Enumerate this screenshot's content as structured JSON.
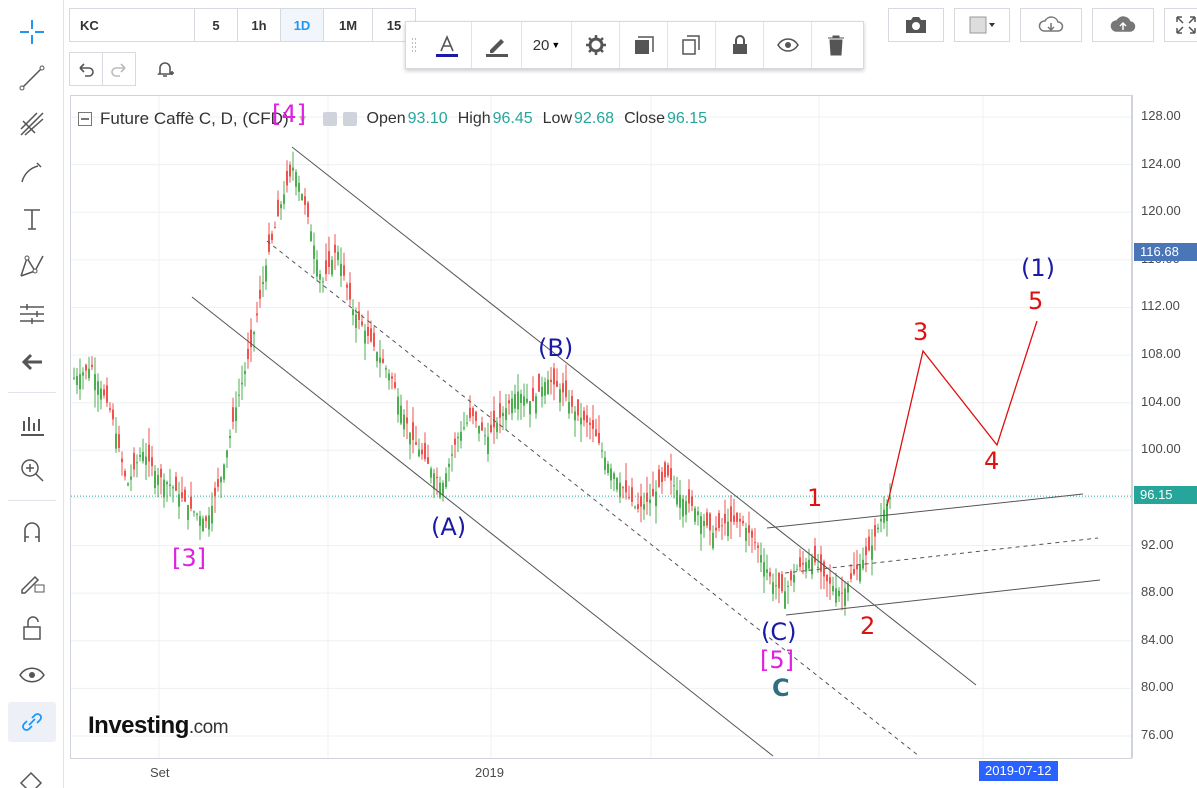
{
  "header": {
    "symbol": "KC",
    "intervals": [
      "5",
      "1h",
      "1D",
      "1M",
      "15"
    ],
    "active_interval": "1D"
  },
  "draw_toolbar": {
    "font_size": "20"
  },
  "legend": {
    "title": "Future Caffè C, D, (CFD)",
    "open_label": "Open",
    "open_value": "93.10",
    "high_label": "High",
    "high_value": "96.45",
    "low_label": "Low",
    "low_value": "92.68",
    "close_label": "Close",
    "close_value": "96.15"
  },
  "price_axis": {
    "ticks": [
      "128.00",
      "124.00",
      "120.00",
      "116.00",
      "112.00",
      "108.00",
      "104.00",
      "100.00",
      "96.00",
      "92.00",
      "88.00",
      "84.00",
      "80.00",
      "76.00"
    ],
    "badge_blue": "116.68",
    "badge_green": "96.15"
  },
  "time_axis": {
    "labels": [
      "Set",
      "2019"
    ],
    "cursor_date": "2019-07-12"
  },
  "wave_labels": {
    "w4_mag": "[4]",
    "w3_mag": "[3]",
    "w5_mag": "[5]",
    "wA": "(A)",
    "wB": "(B)",
    "wC": "(C)",
    "wC_big": "C",
    "r1": "1",
    "r2": "2",
    "r3": "3",
    "r4": "4",
    "r5": "5",
    "deg1": "(1)"
  },
  "logo": {
    "main": "Investing",
    "suffix": ".com"
  },
  "colors": {
    "up": "#4caf50",
    "down": "#ef5350",
    "accent": "#2196f3",
    "price_line": "#26a69a",
    "wave_blue": "#1a1aa6",
    "wave_magenta": "#e020e0",
    "wave_red": "#e01010"
  },
  "icons": {
    "left_toolbar": [
      "crosshair-icon",
      "trend-line-icon",
      "pitchfork-icon",
      "brush-icon",
      "text-icon",
      "pattern-icon",
      "measure-icon",
      "back-arrow-icon",
      "long-position-icon",
      "zoom-in-icon",
      "magnet-icon",
      "lock-draw-icon",
      "unlock-icon",
      "eye-icon",
      "link-icon",
      "eraser-icon"
    ],
    "right_toolbar": [
      "camera-icon",
      "color-swatch-icon",
      "cloud-download-icon",
      "cloud-upload-icon",
      "fullscreen-icon"
    ]
  }
}
